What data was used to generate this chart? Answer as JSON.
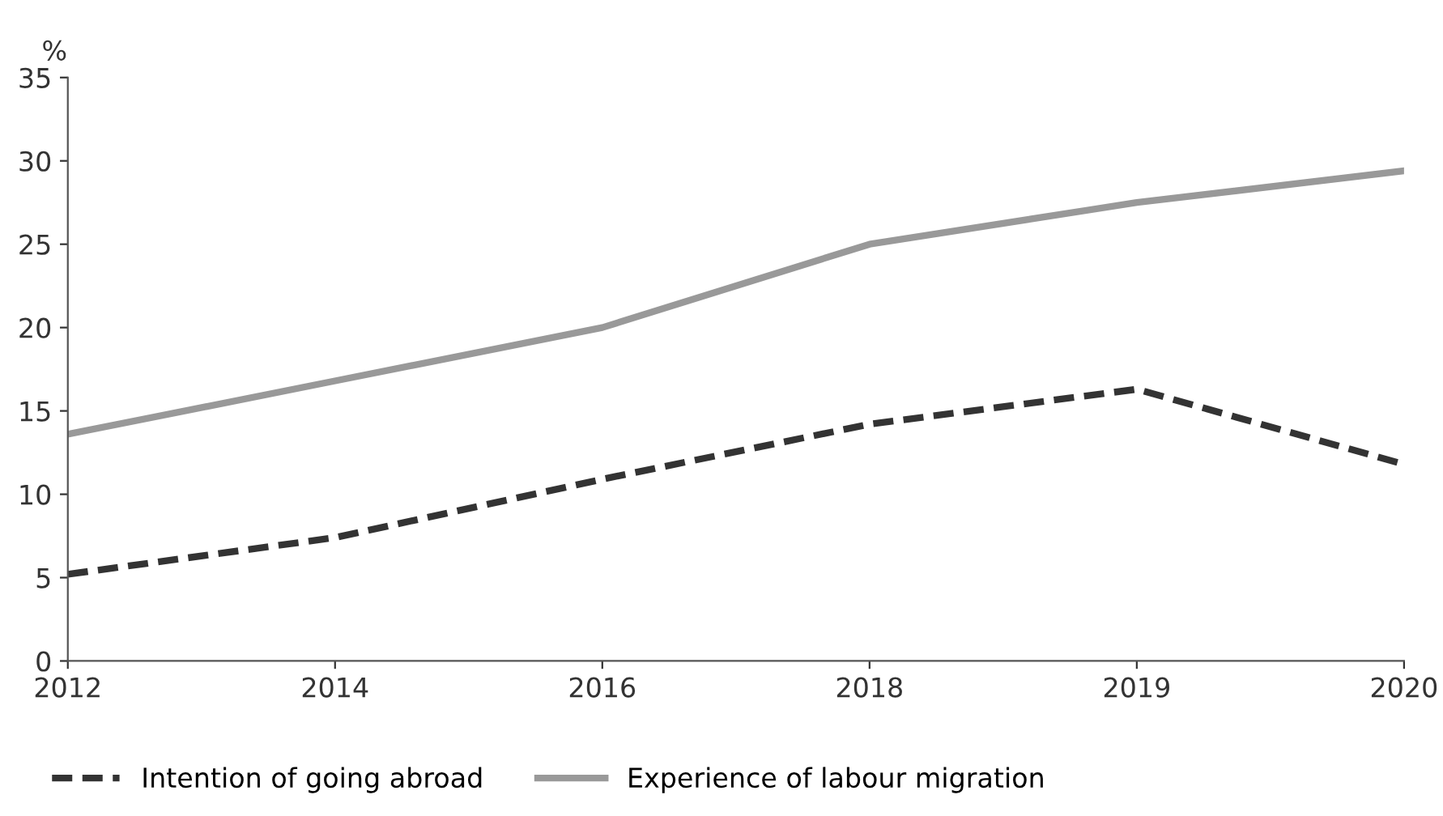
{
  "chart_data": {
    "type": "line",
    "ylabel": "%",
    "categories": [
      "2012",
      "2014",
      "2016",
      "2018",
      "2019",
      "2020"
    ],
    "series": [
      {
        "name": "Intention of going abroad",
        "color": "#333333",
        "line_style": "dashed",
        "values": [
          5.2,
          7.4,
          10.9,
          14.2,
          16.3,
          11.8
        ]
      },
      {
        "name": "Experience of labour migration",
        "color": "#999999",
        "line_style": "solid",
        "values": [
          13.6,
          16.8,
          20.0,
          25.0,
          27.5,
          29.4
        ]
      }
    ],
    "ylim": [
      0,
      35
    ],
    "yticks": [
      0,
      5,
      10,
      15,
      20,
      25,
      30,
      35
    ],
    "grid": false,
    "legend": "bottom"
  }
}
